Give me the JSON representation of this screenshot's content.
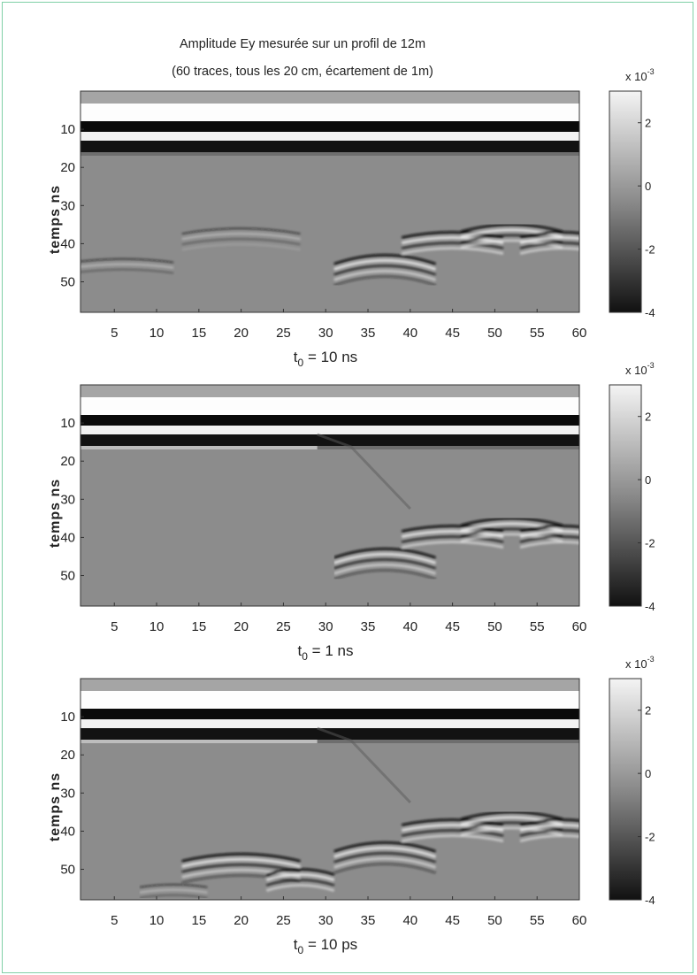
{
  "title": {
    "line1": "Amplitude Ey mesurée sur un profil de 12m",
    "line2": "(60 traces, tous les 20 cm, écartement de 1m)"
  },
  "chart_data": [
    {
      "type": "heatmap",
      "subtitle": "t0 = 10 ns",
      "subtitle_base": "t",
      "subtitle_sub": "0",
      "subtitle_rest": " = 10 ns",
      "ylabel": "temps ns",
      "xticks": [
        "5",
        "10",
        "15",
        "20",
        "25",
        "30",
        "35",
        "40",
        "45",
        "50",
        "55",
        "60"
      ],
      "yticks": [
        "10",
        "20",
        "30",
        "40",
        "50"
      ],
      "xlim": [
        1,
        60
      ],
      "ylim": [
        0,
        58
      ],
      "colorbar": {
        "exponent_label": "x 10",
        "exponent": "-3",
        "ticks": [
          "2",
          "0",
          "-2",
          "-4"
        ],
        "range": [
          -4,
          3
        ]
      },
      "early_signal": true
    },
    {
      "type": "heatmap",
      "subtitle": "t0 = 1 ns",
      "subtitle_base": "t",
      "subtitle_sub": "0",
      "subtitle_rest": " = 1 ns",
      "ylabel": "temps ns",
      "xticks": [
        "5",
        "10",
        "15",
        "20",
        "25",
        "30",
        "35",
        "40",
        "45",
        "50",
        "55",
        "60"
      ],
      "yticks": [
        "10",
        "20",
        "30",
        "40",
        "50"
      ],
      "xlim": [
        1,
        60
      ],
      "ylim": [
        0,
        58
      ],
      "colorbar": {
        "exponent_label": "x 10",
        "exponent": "-3",
        "ticks": [
          "2",
          "0",
          "-2",
          "-4"
        ],
        "range": [
          -4,
          3
        ]
      },
      "early_signal": false
    },
    {
      "type": "heatmap",
      "subtitle": "t0 = 10 ps",
      "subtitle_base": "t",
      "subtitle_sub": "0",
      "subtitle_rest": " = 10 ps",
      "ylabel": "temps ns",
      "xticks": [
        "5",
        "10",
        "15",
        "20",
        "25",
        "30",
        "35",
        "40",
        "45",
        "50",
        "55",
        "60"
      ],
      "yticks": [
        "10",
        "20",
        "30",
        "40",
        "50"
      ],
      "xlim": [
        1,
        60
      ],
      "ylim": [
        0,
        58
      ],
      "colorbar": {
        "exponent_label": "x 10",
        "exponent": "-3",
        "ticks": [
          "2",
          "0",
          "-2",
          "-4"
        ],
        "range": [
          -4,
          3
        ]
      },
      "early_signal": true
    }
  ]
}
